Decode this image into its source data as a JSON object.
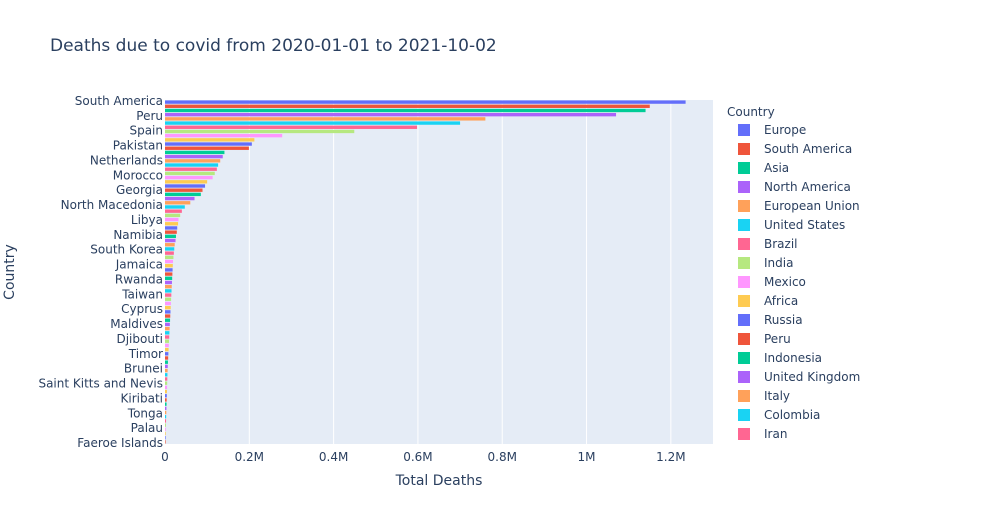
{
  "colors": {
    "plot_bg": "#e5ecf6",
    "grid": "#ffffff",
    "text": "#2a3f5f",
    "palette": [
      "#636efa",
      "#EF553B",
      "#00cc96",
      "#ab63fa",
      "#FFA15A",
      "#19d3f3",
      "#FF6692",
      "#B6E880",
      "#FF97FF",
      "#FECB52"
    ]
  },
  "chart_data": {
    "type": "bar",
    "orientation": "horizontal",
    "title": "Deaths due to covid from 2020-01-01 to 2021-10-02",
    "xlabel": "Total Deaths",
    "ylabel": "Country",
    "xlim": [
      0,
      1300000
    ],
    "x_ticks": [
      0,
      200000,
      400000,
      600000,
      800000,
      1000000,
      1200000
    ],
    "x_tick_labels": [
      "0",
      "0.2M",
      "0.4M",
      "0.6M",
      "0.8M",
      "1M",
      "1.2M"
    ],
    "y_tick_labels": [
      "South America",
      "Peru",
      "Spain",
      "Pakistan",
      "Netherlands",
      "Morocco",
      "Georgia",
      "North Macedonia",
      "Libya",
      "Namibia",
      "South Korea",
      "Jamaica",
      "Rwanda",
      "Taiwan",
      "Cyprus",
      "Maldives",
      "Djibouti",
      "Timor",
      "Brunei",
      "Saint Kitts and Nevis",
      "Kiribati",
      "Tonga",
      "Palau",
      "Faeroe Islands"
    ],
    "legend_title": "Country",
    "legend_position": "right",
    "grid": true,
    "series": [
      {
        "name": "Europe",
        "value": 1235000
      },
      {
        "name": "South America",
        "value": 1150000
      },
      {
        "name": "Asia",
        "value": 1140000
      },
      {
        "name": "North America",
        "value": 1070000
      },
      {
        "name": "European Union",
        "value": 760000
      },
      {
        "name": "United States",
        "value": 700000
      },
      {
        "name": "Brazil",
        "value": 598000
      },
      {
        "name": "India",
        "value": 449000
      },
      {
        "name": "Mexico",
        "value": 278000
      },
      {
        "name": "Africa",
        "value": 212000
      },
      {
        "name": "Russia",
        "value": 206000
      },
      {
        "name": "Peru",
        "value": 199000
      },
      {
        "name": "Indonesia",
        "value": 141000
      },
      {
        "name": "United Kingdom",
        "value": 137000
      },
      {
        "name": "Italy",
        "value": 131000
      },
      {
        "name": "Colombia",
        "value": 126000
      },
      {
        "name": "Iran",
        "value": 123000
      },
      {
        "name": "",
        "value": 118000
      },
      {
        "name": "",
        "value": 113000
      },
      {
        "name": "",
        "value": 100000
      },
      {
        "name": "",
        "value": 95000
      },
      {
        "name": "",
        "value": 89000
      },
      {
        "name": "",
        "value": 85000
      },
      {
        "name": "",
        "value": 70000
      },
      {
        "name": "",
        "value": 60000
      },
      {
        "name": "",
        "value": 47000
      },
      {
        "name": "",
        "value": 40000
      },
      {
        "name": "",
        "value": 36000
      },
      {
        "name": "",
        "value": 32000
      },
      {
        "name": "",
        "value": 31000
      },
      {
        "name": "",
        "value": 29000
      },
      {
        "name": "",
        "value": 28000
      },
      {
        "name": "",
        "value": 26000
      },
      {
        "name": "",
        "value": 25000
      },
      {
        "name": "",
        "value": 23000
      },
      {
        "name": "",
        "value": 22000
      },
      {
        "name": "",
        "value": 21000
      },
      {
        "name": "",
        "value": 20000
      },
      {
        "name": "",
        "value": 19000
      },
      {
        "name": "",
        "value": 18500
      },
      {
        "name": "",
        "value": 18000
      },
      {
        "name": "",
        "value": 17500
      },
      {
        "name": "",
        "value": 17000
      },
      {
        "name": "",
        "value": 16500
      },
      {
        "name": "",
        "value": 16000
      },
      {
        "name": "",
        "value": 15500
      },
      {
        "name": "",
        "value": 15000
      },
      {
        "name": "",
        "value": 14500
      },
      {
        "name": "",
        "value": 14000
      },
      {
        "name": "",
        "value": 13500
      },
      {
        "name": "",
        "value": 13000
      },
      {
        "name": "",
        "value": 12500
      },
      {
        "name": "",
        "value": 12000
      },
      {
        "name": "",
        "value": 11500
      },
      {
        "name": "",
        "value": 11000
      },
      {
        "name": "",
        "value": 10500
      },
      {
        "name": "",
        "value": 10000
      },
      {
        "name": "",
        "value": 9500
      },
      {
        "name": "",
        "value": 9000
      },
      {
        "name": "",
        "value": 8500
      },
      {
        "name": "",
        "value": 8000
      },
      {
        "name": "",
        "value": 7500
      },
      {
        "name": "",
        "value": 7000
      },
      {
        "name": "",
        "value": 6600
      },
      {
        "name": "",
        "value": 6200
      },
      {
        "name": "",
        "value": 5800
      },
      {
        "name": "",
        "value": 5500
      },
      {
        "name": "",
        "value": 5200
      },
      {
        "name": "",
        "value": 4900
      },
      {
        "name": "",
        "value": 4600
      },
      {
        "name": "",
        "value": 4300
      },
      {
        "name": "",
        "value": 4000
      },
      {
        "name": "",
        "value": 3700
      },
      {
        "name": "",
        "value": 3400
      },
      {
        "name": "",
        "value": 3100
      },
      {
        "name": "",
        "value": 2800
      },
      {
        "name": "",
        "value": 2500
      },
      {
        "name": "",
        "value": 2200
      },
      {
        "name": "",
        "value": 1900
      },
      {
        "name": "",
        "value": 1600
      },
      {
        "name": "",
        "value": 1300
      },
      {
        "name": "",
        "value": 1000
      }
    ]
  }
}
